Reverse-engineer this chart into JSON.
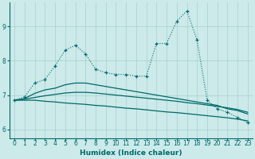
{
  "xlabel": "Humidex (Indice chaleur)",
  "xlim": [
    -0.5,
    23.5
  ],
  "ylim": [
    5.75,
    9.7
  ],
  "yticks": [
    6,
    7,
    8,
    9
  ],
  "xticks": [
    0,
    1,
    2,
    3,
    4,
    5,
    6,
    7,
    8,
    9,
    10,
    11,
    12,
    13,
    14,
    15,
    16,
    17,
    18,
    19,
    20,
    21,
    22,
    23
  ],
  "bg_color": "#cceaea",
  "line_color": "#006868",
  "grid_color": "#aacece",
  "series": [
    {
      "x": [
        0,
        1,
        2,
        3,
        4,
        5,
        6,
        7,
        8,
        9,
        10,
        11,
        12,
        13,
        14,
        15,
        16,
        17,
        18,
        19,
        20,
        21,
        22,
        23
      ],
      "y": [
        6.85,
        6.95,
        7.35,
        7.45,
        7.85,
        8.3,
        8.45,
        8.2,
        7.75,
        7.65,
        7.6,
        7.6,
        7.55,
        7.55,
        8.5,
        8.5,
        9.15,
        9.45,
        8.6,
        6.85,
        6.6,
        6.5,
        6.35,
        6.2
      ],
      "style": ":",
      "marker": "+"
    },
    {
      "x": [
        0,
        1,
        2,
        3,
        4,
        5,
        6,
        7,
        8,
        9,
        10,
        11,
        12,
        13,
        14,
        15,
        16,
        17,
        18,
        19,
        20,
        21,
        22,
        23
      ],
      "y": [
        6.85,
        6.9,
        7.05,
        7.15,
        7.2,
        7.3,
        7.35,
        7.35,
        7.3,
        7.25,
        7.2,
        7.15,
        7.1,
        7.05,
        7.0,
        6.95,
        6.9,
        6.85,
        6.8,
        6.75,
        6.7,
        6.6,
        6.55,
        6.45
      ],
      "style": "-",
      "marker": null,
      "lw": 0.9
    },
    {
      "x": [
        0,
        1,
        2,
        3,
        4,
        5,
        6,
        7,
        8,
        9,
        10,
        11,
        12,
        13,
        14,
        15,
        16,
        17,
        18,
        19,
        20,
        21,
        22,
        23
      ],
      "y": [
        6.85,
        6.88,
        6.93,
        6.98,
        7.02,
        7.06,
        7.08,
        7.08,
        7.06,
        7.03,
        7.0,
        6.97,
        6.94,
        6.91,
        6.88,
        6.85,
        6.82,
        6.78,
        6.75,
        6.71,
        6.67,
        6.63,
        6.58,
        6.5
      ],
      "style": "-",
      "marker": null,
      "lw": 0.9
    },
    {
      "x": [
        0,
        1,
        2,
        3,
        4,
        5,
        6,
        7,
        8,
        9,
        10,
        11,
        12,
        13,
        14,
        15,
        16,
        17,
        18,
        19,
        20,
        21,
        22,
        23
      ],
      "y": [
        6.85,
        6.85,
        6.85,
        6.82,
        6.8,
        6.77,
        6.75,
        6.73,
        6.7,
        6.68,
        6.65,
        6.62,
        6.6,
        6.57,
        6.54,
        6.51,
        6.49,
        6.46,
        6.43,
        6.4,
        6.37,
        6.34,
        6.3,
        6.25
      ],
      "style": "-",
      "marker": null,
      "lw": 0.9
    }
  ]
}
